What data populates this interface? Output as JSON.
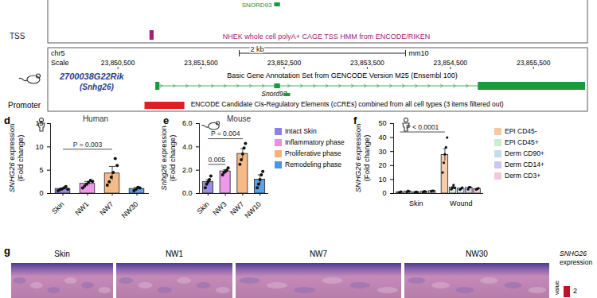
{
  "genome_browser": {
    "xlim": [
      23849800,
      23856120
    ],
    "top_track": {
      "cropped_label": "SNORD93",
      "cropped_feature": [
        23852380,
        23852450
      ],
      "label": "TSS",
      "description": "NHEK whole cell polyA+ CAGE TSS HMM from ENCODE/RIKEN",
      "tss": [
        23850880,
        23850930
      ]
    },
    "header": {
      "chromosome": "chr5",
      "scale_label": "Scale",
      "scale_bar": {
        "bp": 2000,
        "label": "2 kb"
      },
      "assembly": "mm10",
      "ticks": [
        {
          "value": 23850500,
          "label": "23,850,500"
        },
        {
          "value": 23851500,
          "label": "23,851,500"
        },
        {
          "value": 23852500,
          "label": "23,852,500"
        },
        {
          "value": 23853500,
          "label": "23,853,500"
        },
        {
          "value": 23854500,
          "label": "23,854,500"
        },
        {
          "value": 23855500,
          "label": "23,855,500"
        }
      ]
    },
    "gene_track": {
      "gene": "2700038G22Rik",
      "alias": "(Snhg26)",
      "description": "Basic Gene Annotation Set from GENCODE Version M25 (Ensembl 100)",
      "transcript": [
        23850950,
        23856120
      ],
      "exons": [
        [
          23850950,
          23851000
        ],
        [
          23854830,
          23856120
        ]
      ],
      "small_gene": {
        "name": "Snord93",
        "start": 23852380,
        "end": 23852450
      }
    },
    "promoter_track": {
      "label": "Promoter",
      "description": "ENCODE Candidate Cis-Regulatory Elements (cCREs) combined from all cell types (3 items filtered out)",
      "elements": [
        [
          23850820,
          23851300
        ]
      ]
    }
  },
  "chart_data": [
    {
      "panel": "d",
      "type": "bar",
      "title": "Human",
      "categories": [
        "Skin",
        "NW1",
        "NW7",
        "NW30"
      ],
      "values": [
        1.0,
        2.1,
        4.3,
        1.0
      ],
      "errors": [
        0.2,
        0.5,
        1.5,
        0.3
      ],
      "points": [
        [
          0.6,
          0.8,
          1.0,
          1.2,
          1.5,
          0.9
        ],
        [
          1.2,
          1.6,
          2.0,
          2.4,
          2.8,
          2.6
        ],
        [
          1.8,
          2.5,
          3.5,
          4.5,
          7.5,
          6.0
        ],
        [
          0.6,
          0.9,
          1.3,
          1.2
        ]
      ],
      "colors": [
        "#8f80e6",
        "#e98ee6",
        "#f5b27a",
        "#4a96e6"
      ],
      "marker": "circle",
      "ylabel": [
        "SNHG26 expression",
        "(Fold change)"
      ],
      "ylim": [
        0,
        15
      ],
      "yticks": [
        0,
        5,
        10,
        15
      ],
      "annotations": [
        {
          "from": "Skin",
          "to": "NW7",
          "y": 9.5,
          "text": "P = 0.003"
        }
      ]
    },
    {
      "panel": "e",
      "type": "bar",
      "title": "Mouse",
      "categories": [
        "Skin",
        "NW3",
        "NW7",
        "NW10"
      ],
      "values": [
        1.0,
        1.9,
        3.4,
        1.2
      ],
      "errors": [
        0.2,
        0.15,
        0.45,
        0.4
      ],
      "points": [
        [
          0.5,
          0.8,
          1.0,
          1.2,
          1.5
        ],
        [
          1.6,
          1.8,
          1.9,
          2.0,
          2.2
        ],
        [
          2.5,
          2.9,
          3.4,
          3.9,
          4.3
        ],
        [
          0.5,
          0.8,
          1.2,
          1.6,
          1.9
        ]
      ],
      "colors": [
        "#8f80e6",
        "#e98ee6",
        "#f5b27a",
        "#4a96e6"
      ],
      "marker": "circle",
      "legend": "right",
      "legend_labels": [
        "Intact Skin",
        "Inflammatory phase",
        "Proliferative phase",
        "Remodeling phase"
      ],
      "ylabel": [
        "Snhg26 expression",
        "(Fold change)"
      ],
      "ylim": [
        0,
        6
      ],
      "yticks": [
        0,
        2,
        4,
        6
      ],
      "annotations": [
        {
          "from": "Skin",
          "to": "NW3",
          "y": 2.5,
          "text": "0.005"
        },
        {
          "from": "Skin",
          "to": "NW7",
          "y": 4.7,
          "text": "P = 0.004"
        }
      ]
    },
    {
      "panel": "f",
      "type": "bar",
      "categories": [
        "Skin",
        "Wound"
      ],
      "series": [
        {
          "name": "EPI CD45-",
          "color": "#f8c6a0",
          "values": [
            1.0,
            27.6
          ],
          "errors": [
            0.2,
            4.5
          ],
          "points": [
            [
              0.6,
              1.0,
              1.4
            ],
            [
              15,
              22,
              28,
              33,
              40
            ]
          ]
        },
        {
          "name": "EPI CD45+",
          "color": "#c6eecf",
          "values": [
            1.5,
            4.3
          ],
          "errors": [
            0.3,
            0.7
          ],
          "points": [
            [
              1.0,
              2.0,
              1.5
            ],
            [
              3,
              4,
              6,
              4
            ]
          ]
        },
        {
          "name": "Derm CD90+",
          "color": "#c6daf2",
          "values": [
            1.0,
            3.5
          ],
          "errors": [
            0.2,
            0.4
          ],
          "points": [
            [
              0.8,
              1.2,
              1.0
            ],
            [
              2.8,
              3.5,
              4.2
            ]
          ]
        },
        {
          "name": "Derm CD14+",
          "color": "#cac6ee",
          "values": [
            1.3,
            4.0
          ],
          "errors": [
            0.2,
            0.5
          ],
          "points": [
            [
              1.0,
              1.6,
              1.3
            ],
            [
              3,
              4.5,
              4.5
            ]
          ]
        },
        {
          "name": "Derm CD3+",
          "color": "#f2c6de",
          "values": [
            1.8,
            3.3
          ],
          "errors": [
            0.2,
            0.3
          ],
          "points": [
            [
              1.5,
              2.0,
              1.9
            ],
            [
              2.8,
              3.3,
              3.8
            ]
          ]
        }
      ],
      "marker": "circle",
      "legend": "right",
      "ylabel": [
        "SNHG26 expression",
        "(Fold change)"
      ],
      "ylim": [
        0,
        50
      ],
      "yticks": [
        0,
        10,
        20,
        30,
        40,
        50
      ],
      "annotations": [
        {
          "from": "Skin",
          "to": "Wound",
          "series": "EPI CD45-",
          "y": 44,
          "text": "P < 0.0001"
        }
      ]
    }
  ],
  "panel_g": {
    "panel": "g",
    "images": [
      "Skin",
      "NW1",
      "NW7",
      "NW30"
    ],
    "colorbar": {
      "label": [
        "SNHG26",
        "expression"
      ],
      "title": "value",
      "ticks": [
        2
      ]
    }
  }
}
